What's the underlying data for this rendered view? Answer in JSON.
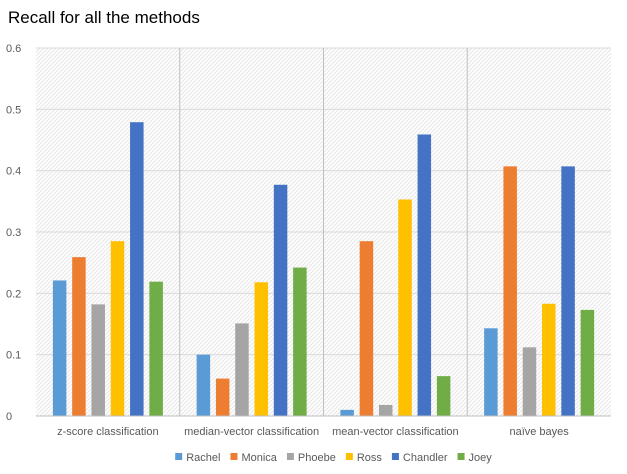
{
  "chart_data": {
    "type": "bar",
    "title": "Recall for all the methods",
    "xlabel": "",
    "ylabel": "",
    "ylim": [
      0,
      0.6
    ],
    "yticks": [
      "0",
      "0.1",
      "0.2",
      "0.3",
      "0.4",
      "0.5",
      "0.6"
    ],
    "categories": [
      "z-score classification",
      "median-vector classification",
      "mean-vector classification",
      "naïve bayes"
    ],
    "series": [
      {
        "name": "Rachel",
        "color": "#5B9BD5",
        "values": [
          0.221,
          0.1,
          0.01,
          0.143
        ]
      },
      {
        "name": "Monica",
        "color": "#ED7D31",
        "values": [
          0.259,
          0.061,
          0.285,
          0.407
        ]
      },
      {
        "name": "Phoebe",
        "color": "#A5A5A5",
        "values": [
          0.182,
          0.151,
          0.018,
          0.112
        ]
      },
      {
        "name": "Ross",
        "color": "#FFC000",
        "values": [
          0.285,
          0.218,
          0.353,
          0.183
        ]
      },
      {
        "name": "Chandler",
        "color": "#4472C4",
        "values": [
          0.479,
          0.377,
          0.459,
          0.407
        ]
      },
      {
        "name": "Joey",
        "color": "#70AD47",
        "values": [
          0.219,
          0.242,
          0.065,
          0.173
        ]
      }
    ],
    "grid": true,
    "legend": "bottom"
  }
}
